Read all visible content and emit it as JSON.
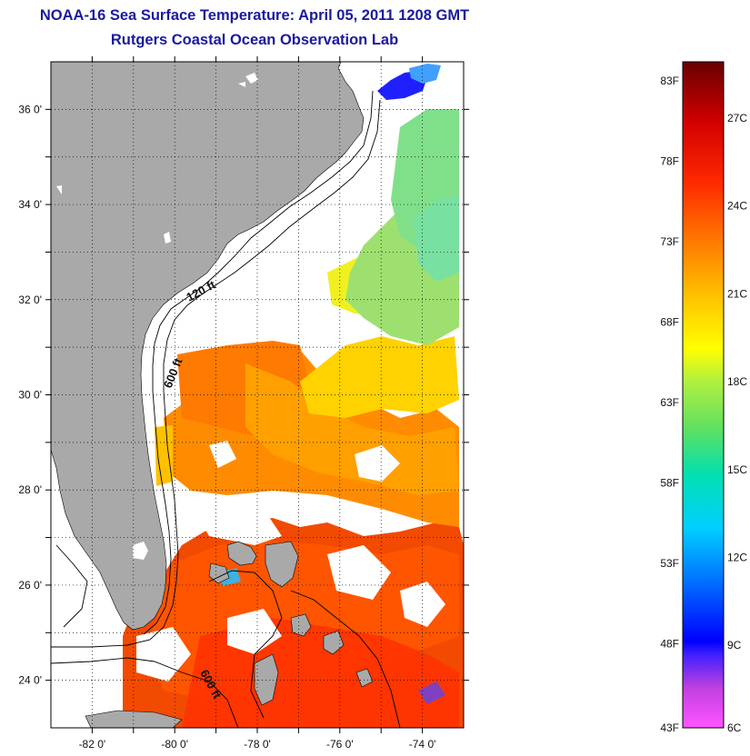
{
  "title": {
    "line1": "NOAA-16 Sea Surface Temperature:  April 05, 2011 1208 GMT",
    "line2": "Rutgers Coastal Ocean Observation Lab"
  },
  "map": {
    "lon_range": [
      -83,
      -73
    ],
    "lat_range": [
      23,
      37
    ],
    "lon_ticks": [
      {
        "value": -82,
        "label": "-82 0'"
      },
      {
        "value": -80,
        "label": "-80 0'"
      },
      {
        "value": -78,
        "label": "-78 0'"
      },
      {
        "value": -76,
        "label": "-76 0'"
      },
      {
        "value": -74,
        "label": "-74 0'"
      }
    ],
    "lat_ticks": [
      {
        "value": 24,
        "label": "24 0'"
      },
      {
        "value": 26,
        "label": "26 0'"
      },
      {
        "value": 28,
        "label": "28 0'"
      },
      {
        "value": 30,
        "label": "30 0'"
      },
      {
        "value": 32,
        "label": "32 0'"
      },
      {
        "value": 34,
        "label": "34 0'"
      },
      {
        "value": 36,
        "label": "36 0'"
      }
    ],
    "grid": "dotted",
    "land_color": "#a9a9a9",
    "cloud_color": "#ffffff",
    "contour_labels": [
      "120 ft",
      "600 ft",
      "600 ft"
    ]
  },
  "colorbar": {
    "fahrenheit_labels": [
      "83F",
      "78F",
      "73F",
      "68F",
      "63F",
      "58F",
      "53F",
      "48F",
      "43F"
    ],
    "celsius_labels": [
      "27C",
      "24C",
      "21C",
      "18C",
      "15C",
      "12C",
      "9C",
      "6C"
    ],
    "colors": {
      "top": "#6a0000",
      "red": "#e00000",
      "orange": "#ff7a00",
      "yellow": "#ffff00",
      "green": "#60e060",
      "cyan": "#00e0e0",
      "blue": "#0000ff",
      "magenta": "#ff44ff"
    }
  }
}
